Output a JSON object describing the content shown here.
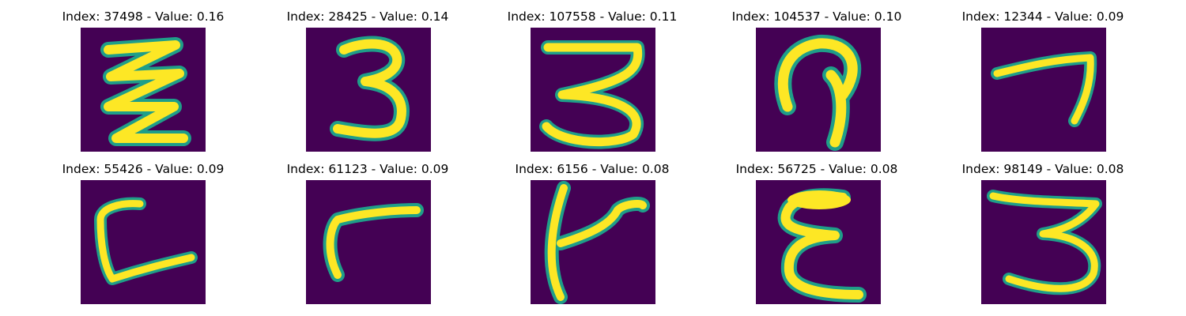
{
  "figure": {
    "colors": {
      "background": "#440154",
      "edge": "#1f9e89",
      "stroke": "#21a685",
      "core": "#fde725"
    },
    "panels": [
      {
        "title": "Index: 37498 - Value: 0.16",
        "glyph": "zigzag-stroke"
      },
      {
        "title": "Index: 28425 - Value: 0.14",
        "glyph": "three-stroke"
      },
      {
        "title": "Index: 107558 - Value: 0.11",
        "glyph": "three-flat-top-stroke"
      },
      {
        "title": "Index: 104537 - Value: 0.10",
        "glyph": "hook-loop-stroke"
      },
      {
        "title": "Index: 12344 - Value: 0.09",
        "glyph": "seven-stroke"
      },
      {
        "title": "Index: 55426 - Value: 0.09",
        "glyph": "c-bracket-stroke"
      },
      {
        "title": "Index: 61123 - Value: 0.09",
        "glyph": "r-stroke"
      },
      {
        "title": "Index: 6156 - Value: 0.08",
        "glyph": "k-stroke"
      },
      {
        "title": "Index: 56725 - Value: 0.08",
        "glyph": "epsilon-stroke"
      },
      {
        "title": "Index: 98149 - Value: 0.08",
        "glyph": "three-angular-stroke"
      }
    ]
  }
}
